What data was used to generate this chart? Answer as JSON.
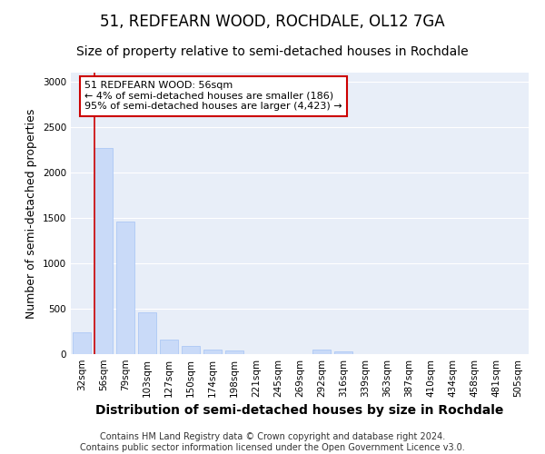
{
  "title": "51, REDFEARN WOOD, ROCHDALE, OL12 7GA",
  "subtitle": "Size of property relative to semi-detached houses in Rochdale",
  "xlabel": "Distribution of semi-detached houses by size in Rochdale",
  "ylabel": "Number of semi-detached properties",
  "footer_line1": "Contains HM Land Registry data © Crown copyright and database right 2024.",
  "footer_line2": "Contains public sector information licensed under the Open Government Licence v3.0.",
  "categories": [
    "32sqm",
    "56sqm",
    "79sqm",
    "103sqm",
    "127sqm",
    "150sqm",
    "174sqm",
    "198sqm",
    "221sqm",
    "245sqm",
    "269sqm",
    "292sqm",
    "316sqm",
    "339sqm",
    "363sqm",
    "387sqm",
    "410sqm",
    "434sqm",
    "458sqm",
    "481sqm",
    "505sqm"
  ],
  "values": [
    240,
    2270,
    1460,
    460,
    165,
    90,
    55,
    45,
    0,
    0,
    0,
    50,
    30,
    0,
    0,
    0,
    0,
    0,
    0,
    0,
    0
  ],
  "bar_color": "#c9daf8",
  "bar_edge_color": "#a4c2f4",
  "vline_color": "#cc0000",
  "vline_x_index": 1,
  "annotation_text": "51 REDFEARN WOOD: 56sqm\n← 4% of semi-detached houses are smaller (186)\n95% of semi-detached houses are larger (4,423) →",
  "annotation_box_facecolor": "#ffffff",
  "annotation_box_edgecolor": "#cc0000",
  "ylim": [
    0,
    3100
  ],
  "yticks": [
    0,
    500,
    1000,
    1500,
    2000,
    2500,
    3000
  ],
  "fig_background_color": "#ffffff",
  "plot_background_color": "#e8eef8",
  "grid_color": "#ffffff",
  "title_fontsize": 12,
  "subtitle_fontsize": 10,
  "axis_label_fontsize": 9,
  "tick_fontsize": 7.5,
  "annotation_fontsize": 8,
  "footer_fontsize": 7
}
